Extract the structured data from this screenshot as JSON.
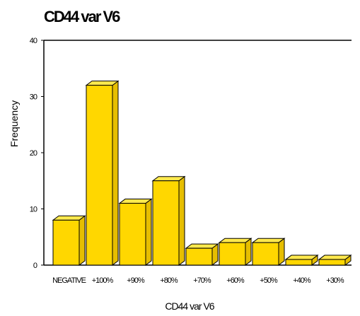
{
  "chart_data": {
    "type": "bar",
    "title": "CD44 var V6",
    "xlabel": "CD44 var V6",
    "ylabel": "Frequency",
    "categories": [
      "NEGATIVE",
      "+100%",
      "+90%",
      "+80%",
      "+70%",
      "+60%",
      "+50%",
      "+40%",
      "+30%"
    ],
    "values": [
      8,
      32,
      11,
      15,
      3,
      4,
      4,
      1,
      1
    ],
    "ylim": [
      0,
      40
    ],
    "yticks": [
      0,
      10,
      20,
      30,
      40
    ],
    "grid": false,
    "legend": "none",
    "three_d": true,
    "colors": {
      "bar_front": "#FFD700",
      "bar_top": "#FFE94D",
      "bar_side": "#E6BE00",
      "bar_outline": "#000000",
      "axis": "#000000"
    }
  }
}
